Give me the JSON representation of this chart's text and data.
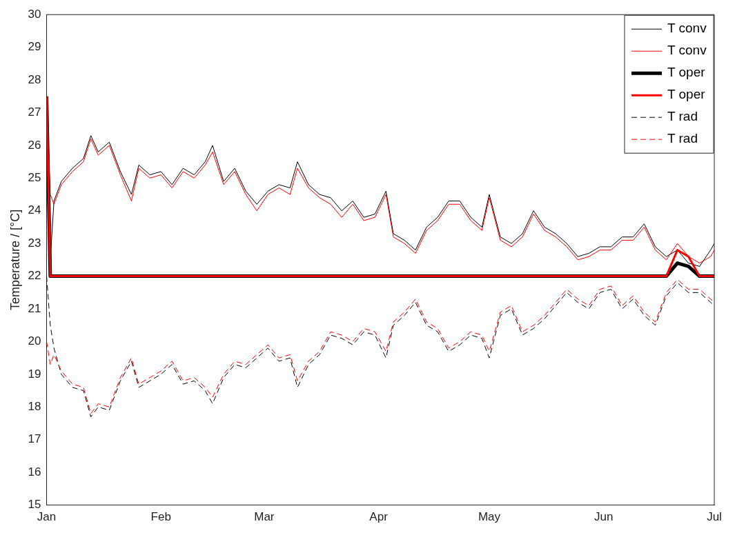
{
  "chart_data": {
    "type": "line",
    "ylabel": "Temperature / [°C]",
    "ylim": [
      15,
      30
    ],
    "yticks": [
      15,
      16,
      17,
      18,
      19,
      20,
      21,
      22,
      23,
      24,
      25,
      26,
      27,
      28,
      29,
      30
    ],
    "xlim": [
      "--01-01",
      "--07-01"
    ],
    "xticks": [
      {
        "value": "--01-01",
        "label": "Jan"
      },
      {
        "value": "--02-01",
        "label": "Feb"
      },
      {
        "value": "--03-01",
        "label": "Mar"
      },
      {
        "value": "--04-01",
        "label": "Apr"
      },
      {
        "value": "--05-01",
        "label": "May"
      },
      {
        "value": "--06-01",
        "label": "Jun"
      },
      {
        "value": "--07-01",
        "label": "Jul"
      }
    ],
    "x": [
      "--01-01",
      "--01-02",
      "--01-03",
      "--01-05",
      "--01-08",
      "--01-11",
      "--01-13",
      "--01-15",
      "--01-18",
      "--01-21",
      "--01-24",
      "--01-26",
      "--01-29",
      "--02-01",
      "--02-04",
      "--02-07",
      "--02-10",
      "--02-13",
      "--02-15",
      "--02-18",
      "--02-21",
      "--02-24",
      "--02-27",
      "--03-02",
      "--03-05",
      "--03-08",
      "--03-10",
      "--03-13",
      "--03-16",
      "--03-19",
      "--03-22",
      "--03-25",
      "--03-28",
      "--03-31",
      "--04-03",
      "--04-05",
      "--04-08",
      "--04-11",
      "--04-14",
      "--04-17",
      "--04-20",
      "--04-23",
      "--04-26",
      "--04-29",
      "--05-01",
      "--05-04",
      "--05-07",
      "--05-10",
      "--05-13",
      "--05-16",
      "--05-19",
      "--05-22",
      "--05-25",
      "--05-28",
      "--05-31",
      "--06-03",
      "--06-06",
      "--06-09",
      "--06-12",
      "--06-15",
      "--06-18",
      "--06-21",
      "--06-24",
      "--06-27",
      "--06-30",
      "--07-01"
    ],
    "legend": "top right",
    "grid": false,
    "marker": "none",
    "series": [
      {
        "name": "T conv",
        "color": "#000000",
        "line_style": "solid",
        "values": [
          27.5,
          22.5,
          24.3,
          24.9,
          25.3,
          25.6,
          26.3,
          25.8,
          26.1,
          25.2,
          24.5,
          25.4,
          25.1,
          25.2,
          24.8,
          25.3,
          25.1,
          25.5,
          26.0,
          24.9,
          25.3,
          24.6,
          24.2,
          24.6,
          24.8,
          24.7,
          25.5,
          24.8,
          24.5,
          24.4,
          24.0,
          24.3,
          23.8,
          23.9,
          24.6,
          23.3,
          23.1,
          22.8,
          23.5,
          23.8,
          24.3,
          24.3,
          23.8,
          23.5,
          24.5,
          23.2,
          23.0,
          23.3,
          24.0,
          23.5,
          23.3,
          23.0,
          22.6,
          22.7,
          22.9,
          22.9,
          23.2,
          23.2,
          23.6,
          22.9,
          22.6,
          22.8,
          22.4,
          22.3,
          22.8,
          23.0
        ]
      },
      {
        "name": "T conv",
        "color": "#ff0000",
        "line_style": "solid",
        "values": [
          27.4,
          24.5,
          24.2,
          24.8,
          25.2,
          25.5,
          26.2,
          25.7,
          26.0,
          25.1,
          24.3,
          25.3,
          25.0,
          25.1,
          24.7,
          25.2,
          25.0,
          25.4,
          25.8,
          24.8,
          25.2,
          24.5,
          24.0,
          24.5,
          24.7,
          24.5,
          25.3,
          24.7,
          24.4,
          24.2,
          23.8,
          24.2,
          23.7,
          23.8,
          24.5,
          23.2,
          23.0,
          22.7,
          23.4,
          23.7,
          24.2,
          24.2,
          23.7,
          23.4,
          24.4,
          23.1,
          22.9,
          23.2,
          23.9,
          23.4,
          23.2,
          22.9,
          22.5,
          22.6,
          22.8,
          22.8,
          23.1,
          23.1,
          23.5,
          22.8,
          22.5,
          23.0,
          22.6,
          22.4,
          22.6,
          22.8
        ]
      },
      {
        "name": "T oper",
        "color": "#000000",
        "line_style": "solid",
        "values": [
          27.5,
          22.0,
          22.0,
          22.0,
          22.0,
          22.0,
          22.0,
          22.0,
          22.0,
          22.0,
          22.0,
          22.0,
          22.0,
          22.0,
          22.0,
          22.0,
          22.0,
          22.0,
          22.0,
          22.0,
          22.0,
          22.0,
          22.0,
          22.0,
          22.0,
          22.0,
          22.0,
          22.0,
          22.0,
          22.0,
          22.0,
          22.0,
          22.0,
          22.0,
          22.0,
          22.0,
          22.0,
          22.0,
          22.0,
          22.0,
          22.0,
          22.0,
          22.0,
          22.0,
          22.0,
          22.0,
          22.0,
          22.0,
          22.0,
          22.0,
          22.0,
          22.0,
          22.0,
          22.0,
          22.0,
          22.0,
          22.0,
          22.0,
          22.0,
          22.0,
          22.0,
          22.4,
          22.3,
          22.0,
          22.0,
          22.0
        ]
      },
      {
        "name": "T oper",
        "color": "#ff0000",
        "line_style": "solid",
        "values": [
          27.5,
          22.0,
          22.0,
          22.0,
          22.0,
          22.0,
          22.0,
          22.0,
          22.0,
          22.0,
          22.0,
          22.0,
          22.0,
          22.0,
          22.0,
          22.0,
          22.0,
          22.0,
          22.0,
          22.0,
          22.0,
          22.0,
          22.0,
          22.0,
          22.0,
          22.0,
          22.0,
          22.0,
          22.0,
          22.0,
          22.0,
          22.0,
          22.0,
          22.0,
          22.0,
          22.0,
          22.0,
          22.0,
          22.0,
          22.0,
          22.0,
          22.0,
          22.0,
          22.0,
          22.0,
          22.0,
          22.0,
          22.0,
          22.0,
          22.0,
          22.0,
          22.0,
          22.0,
          22.0,
          22.0,
          22.0,
          22.0,
          22.0,
          22.0,
          22.0,
          22.0,
          22.8,
          22.6,
          22.0,
          22.0,
          22.0
        ]
      },
      {
        "name": "T rad",
        "color": "#000000",
        "line_style": "dashed",
        "values": [
          22.0,
          20.5,
          19.8,
          19.0,
          18.6,
          18.5,
          17.7,
          18.0,
          17.9,
          18.8,
          19.4,
          18.6,
          18.8,
          19.0,
          19.3,
          18.7,
          18.8,
          18.5,
          18.1,
          18.9,
          19.3,
          19.2,
          19.5,
          19.8,
          19.4,
          19.5,
          18.6,
          19.3,
          19.6,
          20.2,
          20.1,
          19.9,
          20.3,
          20.2,
          19.5,
          20.5,
          20.8,
          21.2,
          20.5,
          20.3,
          19.7,
          19.9,
          20.2,
          20.1,
          19.5,
          20.8,
          21.0,
          20.2,
          20.4,
          20.7,
          21.1,
          21.5,
          21.2,
          21.0,
          21.5,
          21.6,
          21.0,
          21.3,
          20.8,
          20.5,
          21.4,
          21.8,
          21.5,
          21.5,
          21.2,
          21.1
        ]
      },
      {
        "name": "T rad",
        "color": "#ff0000",
        "line_style": "dashed",
        "values": [
          20.0,
          19.3,
          19.6,
          19.1,
          18.7,
          18.6,
          17.8,
          18.1,
          18.0,
          18.9,
          19.5,
          18.7,
          18.9,
          19.1,
          19.4,
          18.8,
          18.9,
          18.6,
          18.3,
          19.0,
          19.4,
          19.3,
          19.6,
          19.9,
          19.5,
          19.6,
          18.8,
          19.4,
          19.7,
          20.3,
          20.2,
          20.0,
          20.4,
          20.3,
          19.7,
          20.6,
          20.9,
          21.3,
          20.6,
          20.4,
          19.8,
          20.0,
          20.3,
          20.2,
          19.7,
          20.9,
          21.1,
          20.3,
          20.5,
          20.8,
          21.2,
          21.6,
          21.3,
          21.1,
          21.6,
          21.7,
          21.1,
          21.4,
          20.9,
          20.6,
          21.5,
          21.9,
          21.6,
          21.6,
          21.3,
          21.2
        ]
      }
    ]
  }
}
